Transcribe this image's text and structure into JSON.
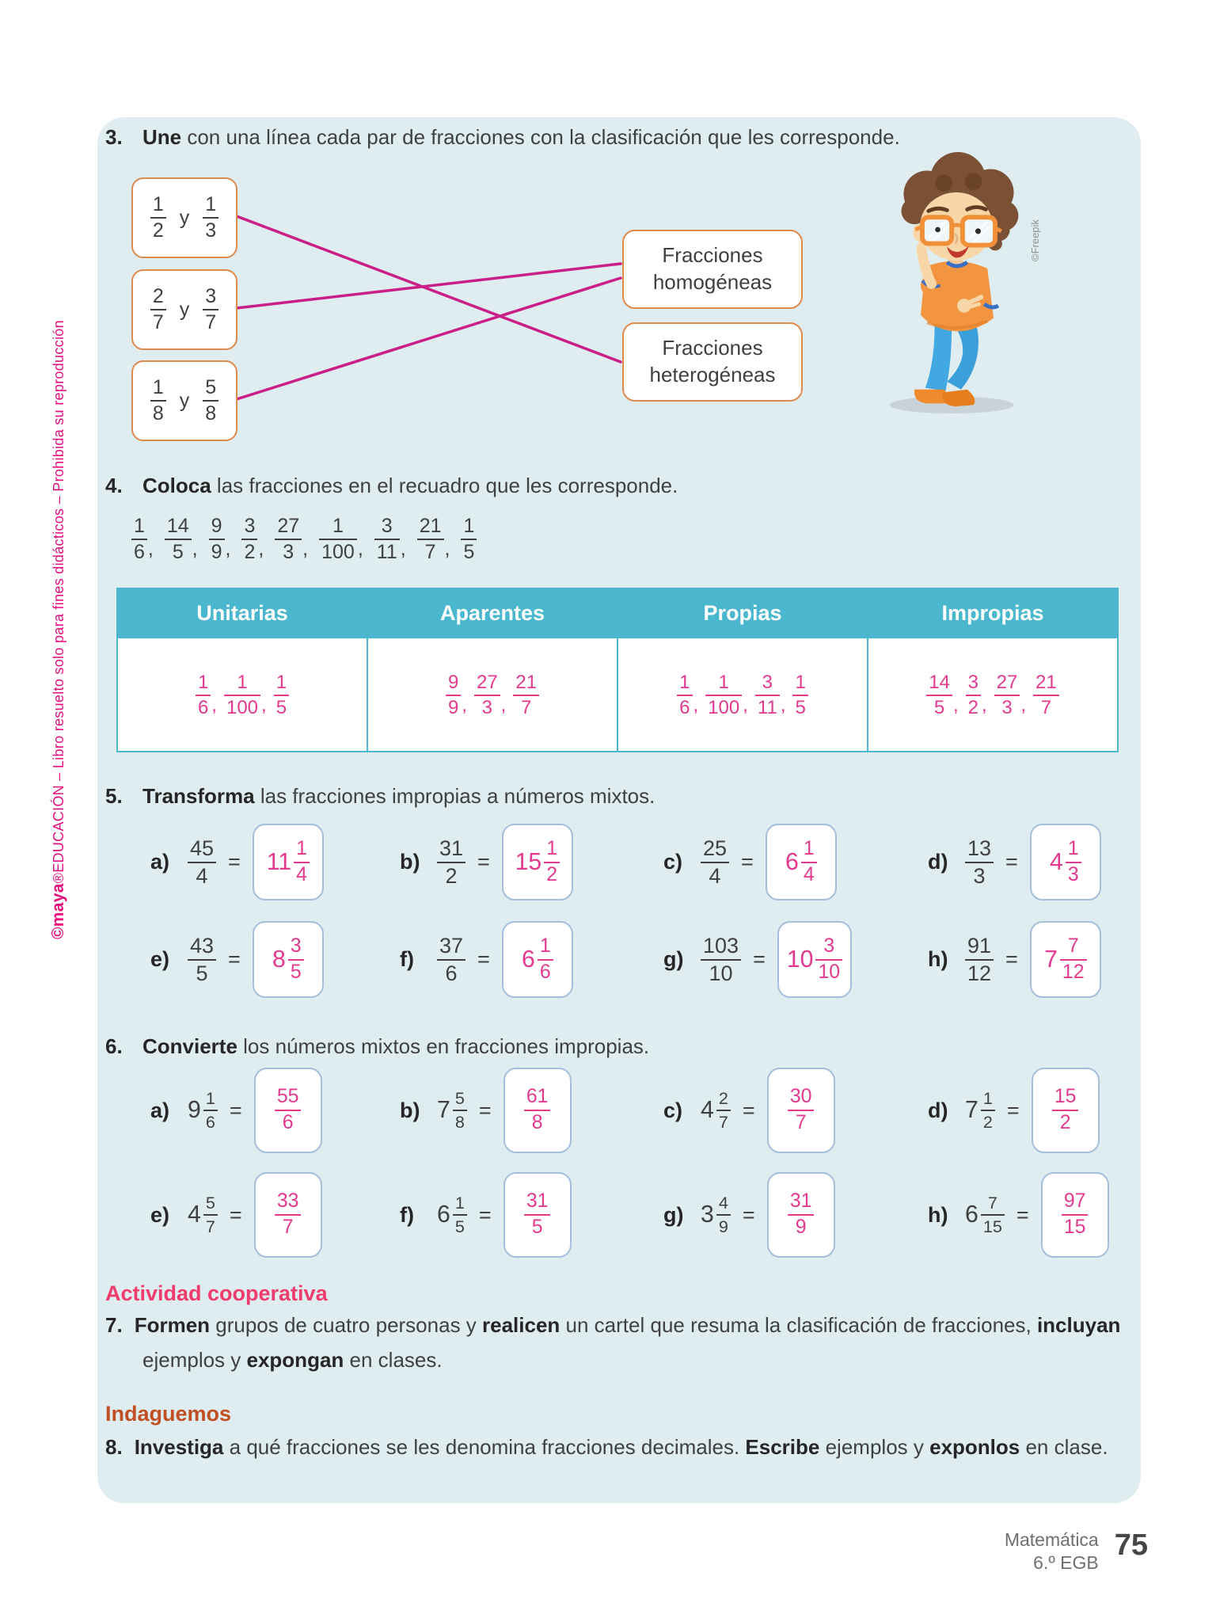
{
  "colors": {
    "card_bg": "#e0edf0",
    "table_header_bg": "#4ab7ce",
    "answer_pink": "#e23a8e",
    "line_pink": "#c91f87",
    "orange_border": "#dd8a4f",
    "answer_box_border": "#a5bfdb",
    "text": "#3f4040",
    "bold_text": "#262626",
    "coop_heading": "#ee3c6d",
    "indaguemos_heading": "#c14f24",
    "sidebar_magenta": "#e50f7e",
    "footer_gray": "#6f6f6f"
  },
  "sidebar_credit": {
    "bold": "©maya",
    "rest": "®EDUCACIÓN – Libro resuelto solo para fines didácticos – Prohibida su reproducción"
  },
  "freepik_credit": "©Freepik",
  "ex3": {
    "number": "3.",
    "segments": [
      {
        "b": "Une"
      },
      {
        "t": " con una línea cada par de fracciones con la clasificación que les corresponde."
      }
    ],
    "pairs": [
      {
        "f1": {
          "n": "1",
          "d": "2"
        },
        "conj": "y",
        "f2": {
          "n": "1",
          "d": "3"
        }
      },
      {
        "f1": {
          "n": "2",
          "d": "7"
        },
        "conj": "y",
        "f2": {
          "n": "3",
          "d": "7"
        }
      },
      {
        "f1": {
          "n": "1",
          "d": "8"
        },
        "conj": "y",
        "f2": {
          "n": "5",
          "d": "8"
        }
      }
    ],
    "targets": [
      "Fracciones homogéneas",
      "Fracciones heterogéneas"
    ],
    "connections": [
      {
        "pair": 0,
        "target": 1
      },
      {
        "pair": 1,
        "target": 0
      },
      {
        "pair": 2,
        "target": 0
      }
    ]
  },
  "ex4": {
    "number": "4.",
    "segments": [
      {
        "b": "Coloca"
      },
      {
        "t": " las fracciones en el recuadro que les corresponde."
      }
    ],
    "fractions": [
      {
        "n": "1",
        "d": "6"
      },
      {
        "n": "14",
        "d": "5"
      },
      {
        "n": "9",
        "d": "9"
      },
      {
        "n": "3",
        "d": "2"
      },
      {
        "n": "27",
        "d": "3"
      },
      {
        "n": "1",
        "d": "100"
      },
      {
        "n": "3",
        "d": "11"
      },
      {
        "n": "21",
        "d": "7"
      },
      {
        "n": "1",
        "d": "5"
      }
    ],
    "table": {
      "headers": [
        "Unitarias",
        "Aparentes",
        "Propias",
        "Impropias"
      ],
      "cells": [
        [
          {
            "n": "1",
            "d": "6"
          },
          {
            "n": "1",
            "d": "100"
          },
          {
            "n": "1",
            "d": "5"
          }
        ],
        [
          {
            "n": "9",
            "d": "9"
          },
          {
            "n": "27",
            "d": "3"
          },
          {
            "n": "21",
            "d": "7"
          }
        ],
        [
          {
            "n": "1",
            "d": "6"
          },
          {
            "n": "1",
            "d": "100"
          },
          {
            "n": "3",
            "d": "11"
          },
          {
            "n": "1",
            "d": "5"
          }
        ],
        [
          {
            "n": "14",
            "d": "5"
          },
          {
            "n": "3",
            "d": "2"
          },
          {
            "n": "27",
            "d": "3"
          },
          {
            "n": "21",
            "d": "7"
          }
        ]
      ]
    }
  },
  "ex5": {
    "number": "5.",
    "segments": [
      {
        "b": "Transforma"
      },
      {
        "t": " las fracciones impropias a números mixtos."
      }
    ],
    "items": [
      {
        "label": "a)",
        "fraction": {
          "n": "45",
          "d": "4"
        },
        "answer": {
          "whole": "11",
          "n": "1",
          "d": "4"
        }
      },
      {
        "label": "b)",
        "fraction": {
          "n": "31",
          "d": "2"
        },
        "answer": {
          "whole": "15",
          "n": "1",
          "d": "2"
        }
      },
      {
        "label": "c)",
        "fraction": {
          "n": "25",
          "d": "4"
        },
        "answer": {
          "whole": "6",
          "n": "1",
          "d": "4"
        }
      },
      {
        "label": "d)",
        "fraction": {
          "n": "13",
          "d": "3"
        },
        "answer": {
          "whole": "4",
          "n": "1",
          "d": "3"
        }
      },
      {
        "label": "e)",
        "fraction": {
          "n": "43",
          "d": "5"
        },
        "answer": {
          "whole": "8",
          "n": "3",
          "d": "5"
        }
      },
      {
        "label": "f)",
        "fraction": {
          "n": "37",
          "d": "6"
        },
        "answer": {
          "whole": "6",
          "n": "1",
          "d": "6"
        }
      },
      {
        "label": "g)",
        "fraction": {
          "n": "103",
          "d": "10"
        },
        "answer": {
          "whole": "10",
          "n": "3",
          "d": "10"
        }
      },
      {
        "label": "h)",
        "fraction": {
          "n": "91",
          "d": "12"
        },
        "answer": {
          "whole": "7",
          "n": "7",
          "d": "12"
        }
      }
    ]
  },
  "ex6": {
    "number": "6.",
    "segments": [
      {
        "b": "Convierte"
      },
      {
        "t": " los números mixtos en fracciones impropias."
      }
    ],
    "items": [
      {
        "label": "a)",
        "mixed": {
          "whole": "9",
          "n": "1",
          "d": "6"
        },
        "answer": {
          "n": "55",
          "d": "6"
        }
      },
      {
        "label": "b)",
        "mixed": {
          "whole": "7",
          "n": "5",
          "d": "8"
        },
        "answer": {
          "n": "61",
          "d": "8"
        }
      },
      {
        "label": "c)",
        "mixed": {
          "whole": "4",
          "n": "2",
          "d": "7"
        },
        "answer": {
          "n": "30",
          "d": "7"
        }
      },
      {
        "label": "d)",
        "mixed": {
          "whole": "7",
          "n": "1",
          "d": "2"
        },
        "answer": {
          "n": "15",
          "d": "2"
        }
      },
      {
        "label": "e)",
        "mixed": {
          "whole": "4",
          "n": "5",
          "d": "7"
        },
        "answer": {
          "n": "33",
          "d": "7"
        }
      },
      {
        "label": "f)",
        "mixed": {
          "whole": "6",
          "n": "1",
          "d": "5"
        },
        "answer": {
          "n": "31",
          "d": "5"
        }
      },
      {
        "label": "g)",
        "mixed": {
          "whole": "3",
          "n": "4",
          "d": "9"
        },
        "answer": {
          "n": "31",
          "d": "9"
        }
      },
      {
        "label": "h)",
        "mixed": {
          "whole": "6",
          "n": "7",
          "d": "15"
        },
        "answer": {
          "n": "97",
          "d": "15"
        }
      }
    ]
  },
  "coop": {
    "heading": "Actividad cooperativa",
    "number": "7.",
    "segments": [
      {
        "b": "Formen"
      },
      {
        "t": " grupos de cuatro personas y "
      },
      {
        "b": "realicen"
      },
      {
        "t": " un cartel que resuma la clasificación de fracciones, "
      },
      {
        "b": "incluyan"
      },
      {
        "t": " ejemplos y "
      },
      {
        "b": "expongan"
      },
      {
        "t": " en clases."
      }
    ]
  },
  "indaguemos": {
    "heading": "Indaguemos",
    "number": "8.",
    "segments": [
      {
        "b": "Investiga"
      },
      {
        "t": " a qué fracciones se les denomina fracciones decimales. "
      },
      {
        "b": "Escribe"
      },
      {
        "t": " ejemplos y "
      },
      {
        "b": "exponlos"
      },
      {
        "t": " en clase."
      }
    ]
  },
  "footer": {
    "subject": "Matemática",
    "grade": "6.º EGB",
    "page_number": "75"
  }
}
